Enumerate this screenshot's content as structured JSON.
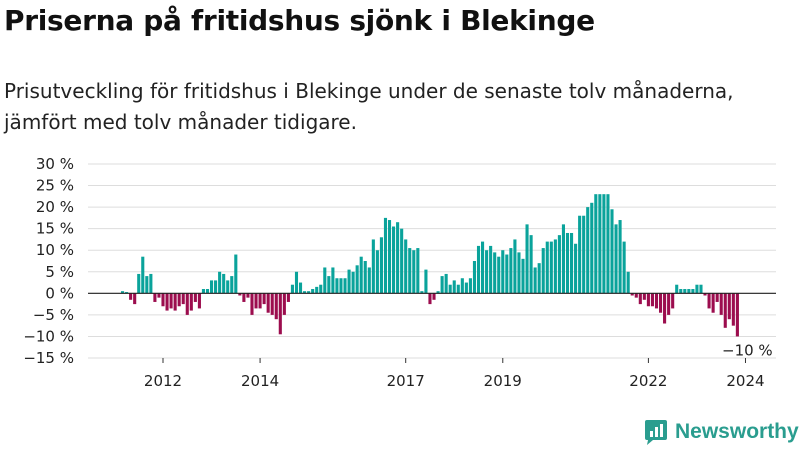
{
  "title": "Priserna på fritidshus sjönk i Blekinge",
  "subtitle": "Prisutveckling för fritidshus i Blekinge under de senaste tolv månaderna, jämfört med tolv månader tidigare.",
  "brand": "Newsworthy",
  "colors": {
    "positive": "#0aa39b",
    "negative": "#9c0d4e",
    "brand": "#2a9d8f",
    "grid": "#dddddd"
  },
  "chart_data": {
    "type": "bar",
    "yticks": [
      "30 %",
      "25 %",
      "20 %",
      "15 %",
      "10 %",
      "5 %",
      "0 %",
      "−5 %",
      "−10 %",
      "−15 %"
    ],
    "ylim": [
      -15,
      30
    ],
    "grid": true,
    "xticks": [
      {
        "label": "2012",
        "index": 10
      },
      {
        "label": "2014",
        "index": 34
      },
      {
        "label": "2017",
        "index": 70
      },
      {
        "label": "2019",
        "index": 94
      },
      {
        "label": "2022",
        "index": 130
      },
      {
        "label": "2024",
        "index": 154
      }
    ],
    "annotation": "−10 %",
    "values": [
      0.5,
      0.3,
      -1.5,
      -2.5,
      4.5,
      8.5,
      4.0,
      4.5,
      -2.0,
      -1.0,
      -3.0,
      -4.0,
      -3.5,
      -4.0,
      -3.0,
      -2.5,
      -5.0,
      -4.0,
      -2.0,
      -3.5,
      1.0,
      1.0,
      3.0,
      3.0,
      5.0,
      4.5,
      3.0,
      4.0,
      9.0,
      -0.5,
      -2.0,
      -1.0,
      -5.0,
      -3.5,
      -3.5,
      -2.5,
      -4.5,
      -5.0,
      -6.0,
      -9.5,
      -5.0,
      -2.0,
      2.0,
      5.0,
      2.5,
      0.5,
      0.5,
      1.0,
      1.5,
      2.0,
      6.0,
      4.0,
      6.0,
      3.5,
      3.5,
      3.5,
      5.5,
      5.0,
      6.5,
      8.5,
      7.5,
      6.0,
      12.5,
      10.0,
      13.0,
      17.5,
      17.0,
      15.5,
      16.5,
      15.0,
      12.5,
      10.5,
      10.0,
      10.5,
      0.5,
      5.5,
      -2.5,
      -1.5,
      0.5,
      4.0,
      4.5,
      2.0,
      3.0,
      2.0,
      3.5,
      2.5,
      3.5,
      7.5,
      11.0,
      12.0,
      10.0,
      11.0,
      9.5,
      8.5,
      10.0,
      9.0,
      10.5,
      12.5,
      9.5,
      8.0,
      16.0,
      13.5,
      6.0,
      7.0,
      10.5,
      12.0,
      12.0,
      12.5,
      13.5,
      16.0,
      14.0,
      14.0,
      11.5,
      18.0,
      18.0,
      20.0,
      21.0,
      23.0,
      23.0,
      23.0,
      23.0,
      19.5,
      16.0,
      17.0,
      12.0,
      5.0,
      -0.5,
      -1.0,
      -2.5,
      -1.5,
      -3.0,
      -3.0,
      -3.5,
      -4.5,
      -7.0,
      -5.0,
      -3.5,
      2.0,
      1.0,
      1.0,
      1.0,
      1.0,
      2.0,
      2.0,
      -0.5,
      -3.5,
      -4.5,
      -2.0,
      -5.0,
      -8.0,
      -6.0,
      -7.5,
      -10.0
    ]
  }
}
